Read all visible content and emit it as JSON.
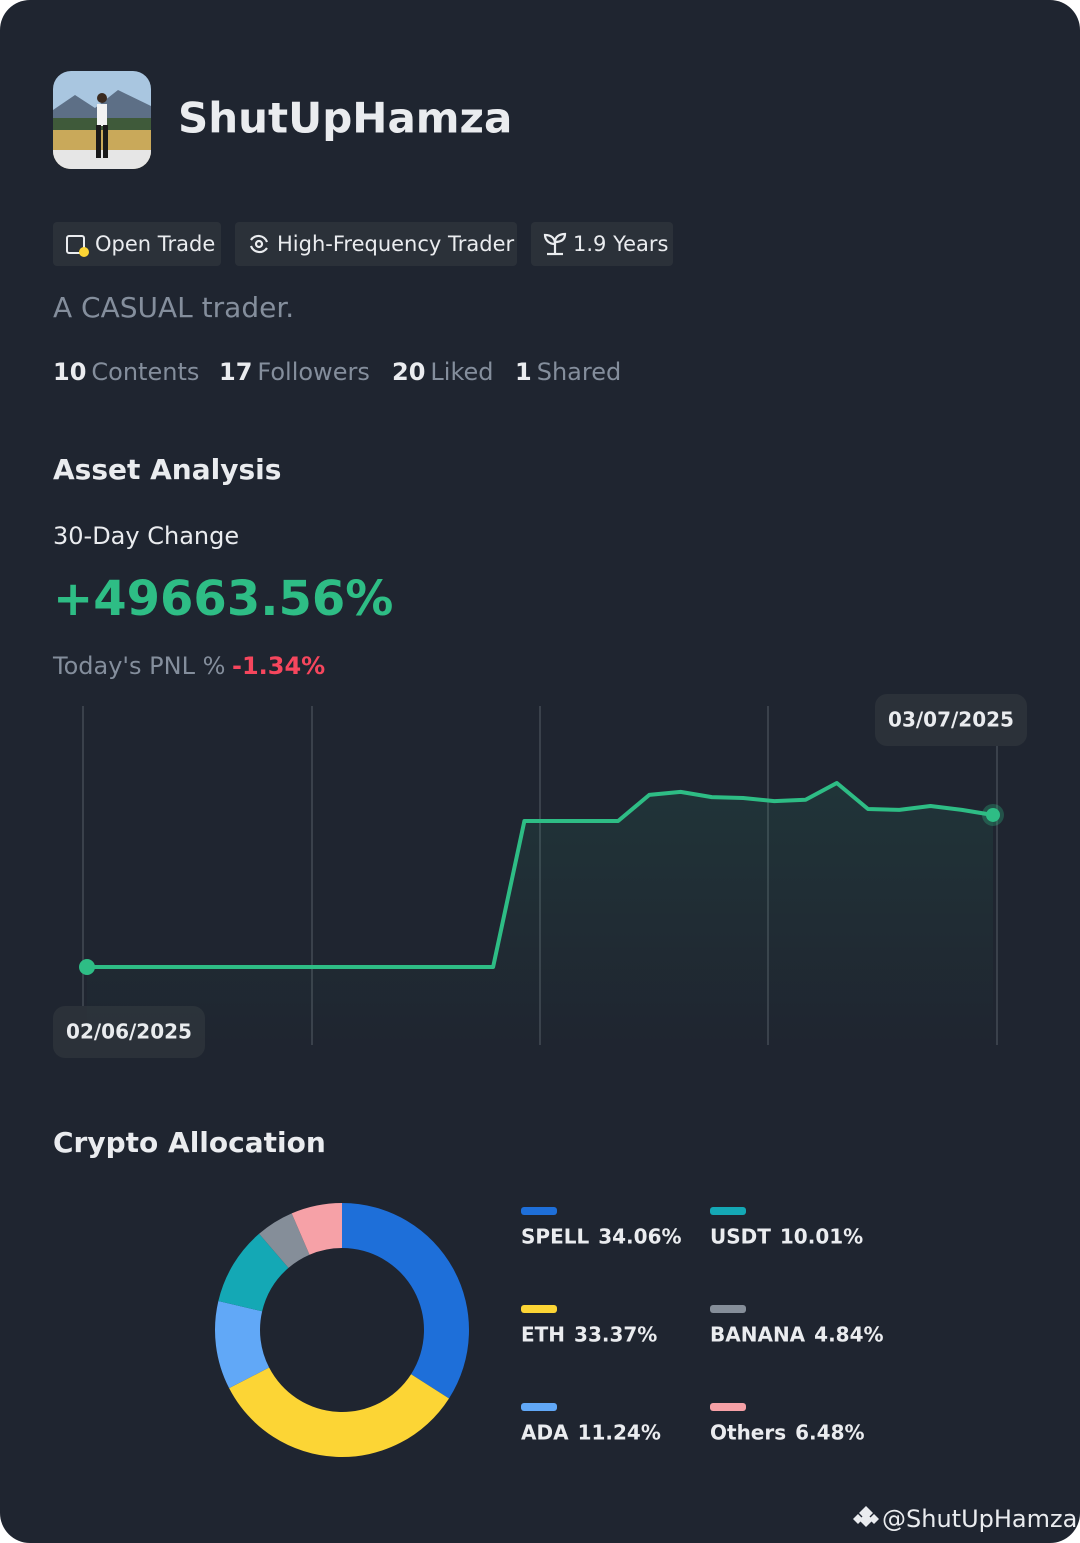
{
  "profile": {
    "name": "ShutUpHamza",
    "badges": [
      "Open Trade",
      "High-Frequency Trader",
      "1.9 Years"
    ],
    "bio": "A CASUAL trader.",
    "stats": [
      {
        "count": 10,
        "label": "Contents"
      },
      {
        "count": 17,
        "label": "Followers"
      },
      {
        "count": 20,
        "label": "Liked"
      },
      {
        "count": 1,
        "label": "Shared"
      }
    ]
  },
  "asset_analysis": {
    "title": "Asset Analysis",
    "change_label": "30-Day Change",
    "change_value": "+49663.56%",
    "pnl_label": "Today's PNL %",
    "pnl_value": "-1.34%"
  },
  "chart_data": [
    {
      "type": "line",
      "color": "#2ebd85",
      "categories": [
        "02/06/2025",
        null,
        null,
        null,
        null,
        null,
        null,
        null,
        null,
        null,
        null,
        null,
        null,
        null,
        null,
        null,
        null,
        null,
        null,
        null,
        null,
        null,
        null,
        null,
        null,
        null,
        null,
        null,
        null,
        "03/07/2025"
      ],
      "values": [
        0,
        0,
        0,
        0,
        0,
        0,
        0,
        0,
        0,
        0,
        0,
        0,
        0,
        0,
        47700,
        47700,
        47700,
        47700,
        56200,
        57200,
        55500,
        55200,
        54200,
        54600,
        60100,
        51600,
        51300,
        52600,
        51300,
        49663.56
      ]
    },
    {
      "type": "donut",
      "title": "Crypto Allocation",
      "categories": [
        "SPELL",
        "ETH",
        "ADA",
        "USDT",
        "BANANA",
        "Others"
      ],
      "values": [
        34.06,
        33.37,
        11.24,
        10.01,
        4.84,
        6.48
      ],
      "value_labels": [
        "34.06%",
        "33.37%",
        "11.24%",
        "10.01%",
        "4.84%",
        "6.48%"
      ],
      "colors": [
        "#1e6fd9",
        "#fcd535",
        "#61a8f7",
        "#14a8b5",
        "#858e99",
        "#f6a1a7"
      ]
    }
  ],
  "watermark": "@ShutUpHamza"
}
